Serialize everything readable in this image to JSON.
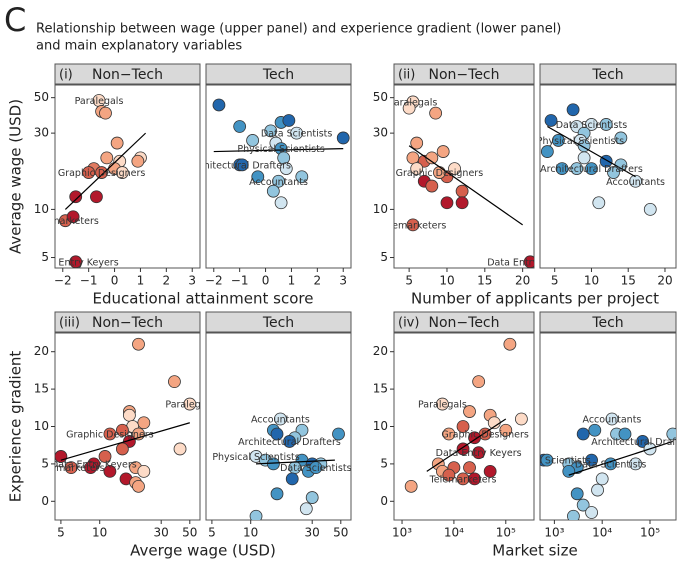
{
  "panel_letter": "C",
  "title": [
    "Relationship between wage (upper panel) and experience gradient (lower panel)",
    "and main explanatory variables"
  ],
  "chart_data": [
    {
      "type": "scatter",
      "panel": "(i)",
      "facet": "Non−Tech",
      "xlabel": "Educational attainment score",
      "ylabel": "Average wage (USD)",
      "log_x": false,
      "log_y": true,
      "xlim": [
        -2.3,
        3.3
      ],
      "ylim": [
        4.3,
        60
      ],
      "xticks": [
        {
          "value": -2,
          "label": "−2"
        },
        {
          "value": -1,
          "label": "−1"
        },
        0,
        1,
        2,
        3
      ],
      "yticks": [
        5,
        10,
        30,
        50
      ],
      "x": [
        -0.6,
        -0.5,
        -0.35,
        0.1,
        -0.3,
        0.2,
        1.0,
        0.9,
        -0.8,
        -0.5,
        0.0,
        0.3,
        -1.0,
        -1.5,
        -0.7,
        -1.9,
        -1.6,
        -1.5
      ],
      "y": [
        48,
        41,
        40,
        26,
        21,
        20,
        21,
        20,
        18,
        17,
        18,
        17,
        17,
        12,
        12,
        8.5,
        9,
        4.7
      ],
      "colors": [
        "#fddbc7",
        "#f4a582",
        "#f4a582",
        "#f4a582",
        "#f4a582",
        "#fddbc7",
        "#fddbc7",
        "#f4a582",
        "#e07b62",
        "#d6604d",
        "#f4a582",
        "#fddbc7",
        "#d6604d",
        "#b2182b",
        "#b2182b",
        "#d6604d",
        "#b2182b",
        "#b2182b"
      ],
      "labels": [
        "Paralegals",
        null,
        null,
        null,
        null,
        null,
        null,
        null,
        null,
        "Graphic Designers",
        null,
        null,
        null,
        null,
        null,
        "Telemarketers",
        null,
        "Data Entry Keyers"
      ],
      "trend": {
        "x": [
          -1.9,
          1.2
        ],
        "y": [
          10,
          30
        ]
      }
    },
    {
      "type": "scatter",
      "facet": "Tech",
      "log_x": false,
      "log_y": true,
      "xlim": [
        -2.3,
        3.3
      ],
      "ylim": [
        4.3,
        60
      ],
      "xticks": [
        {
          "value": -2,
          "label": "−2"
        },
        {
          "value": -1,
          "label": "−1"
        },
        0,
        1,
        2,
        3
      ],
      "x": [
        -1.8,
        -1.0,
        0.6,
        0.9,
        0.2,
        1.2,
        3.0,
        -0.5,
        0.4,
        0.6,
        -1.0,
        -0.9,
        0.7,
        0.8,
        -0.3,
        0.5,
        1.4,
        0.3,
        0.6
      ],
      "y": [
        45,
        33,
        35,
        36,
        31,
        30,
        28,
        27,
        26,
        24,
        19,
        19,
        21,
        18,
        16,
        15,
        16,
        13,
        11
      ],
      "colors": [
        "#2166ac",
        "#4393c3",
        "#4393c3",
        "#2166ac",
        "#92c5de",
        "#d1e5f0",
        "#2166ac",
        "#92c5de",
        "#d1e5f0",
        "#4393c3",
        "#2166ac",
        "#2166ac",
        "#92c5de",
        "#d1e5f0",
        "#4393c3",
        "#92c5de",
        "#92c5de",
        "#92c5de",
        "#d1e5f0"
      ],
      "labels": [
        null,
        null,
        null,
        null,
        null,
        "Data Scientists",
        null,
        null,
        null,
        "Physical Scientists",
        "Architectural Drafters",
        null,
        null,
        null,
        null,
        "Accountants",
        null,
        null,
        null
      ],
      "trend": {
        "x": [
          -2.0,
          3.0
        ],
        "y": [
          23,
          24
        ]
      }
    },
    {
      "type": "scatter",
      "panel": "(ii)",
      "facet": "Non−Tech",
      "xlabel": "Number of applicants per project",
      "log_x": false,
      "log_y": true,
      "xlim": [
        3,
        21.5
      ],
      "ylim": [
        4.3,
        60
      ],
      "xticks": [
        5,
        10,
        15,
        20
      ],
      "yticks": [
        5,
        10,
        30,
        50
      ],
      "x": [
        5.5,
        5.0,
        8.5,
        6.0,
        9.5,
        5.5,
        7.0,
        8.0,
        6.0,
        10.0,
        9.0,
        11.0,
        7.0,
        8.0,
        12.0,
        10.0,
        12.0,
        5.5,
        21.0
      ],
      "y": [
        47,
        43,
        40,
        26,
        23,
        21,
        20,
        21,
        18,
        16,
        17,
        18,
        15,
        14,
        13,
        11,
        11,
        8,
        4.7
      ],
      "colors": [
        "#fddbc7",
        "#fddbc7",
        "#f4a582",
        "#f4a582",
        "#f4a582",
        "#f4a582",
        "#d6604d",
        "#f4a582",
        "#fddbc7",
        "#d6604d",
        "#f4a582",
        "#fddbc7",
        "#b2182b",
        "#d6604d",
        "#d6604d",
        "#b2182b",
        "#b2182b",
        "#d6604d",
        "#b2182b"
      ],
      "labels": [
        "Paralegals",
        null,
        null,
        null,
        null,
        null,
        null,
        null,
        null,
        null,
        "Graphic Designers",
        null,
        null,
        null,
        null,
        null,
        null,
        "Telemarketers",
        "Data Entry Keyers"
      ],
      "trend": {
        "x": [
          5,
          20
        ],
        "y": [
          25,
          8
        ]
      }
    },
    {
      "type": "scatter",
      "facet": "Tech",
      "log_x": false,
      "log_y": true,
      "xlim": [
        3,
        21.5
      ],
      "ylim": [
        4.3,
        60
      ],
      "xticks": [
        5,
        10,
        15,
        20
      ],
      "x": [
        7.5,
        4.5,
        10.0,
        12.0,
        8.0,
        9.0,
        14.0,
        5.5,
        8.5,
        4.0,
        9.0,
        9.0,
        12.0,
        10.0,
        14.0,
        6.0,
        8.0,
        13.0,
        16.0,
        11.0,
        18.0
      ],
      "y": [
        42,
        36,
        34,
        34,
        33,
        30,
        28,
        27,
        27,
        23,
        25,
        21,
        20,
        18,
        19,
        18,
        18,
        17,
        15,
        11,
        10
      ],
      "colors": [
        "#2166ac",
        "#2166ac",
        "#d1e5f0",
        "#92c5de",
        "#d1e5f0",
        "#92c5de",
        "#92c5de",
        "#4393c3",
        "#d1e5f0",
        "#4393c3",
        "#92c5de",
        "#d1e5f0",
        "#2166ac",
        "#4393c3",
        "#92c5de",
        "#4393c3",
        "#92c5de",
        "#92c5de",
        "#d1e5f0",
        "#d1e5f0",
        "#d1e5f0"
      ],
      "labels": [
        null,
        null,
        "Data Scientists",
        null,
        null,
        null,
        null,
        null,
        "Physical Scientists",
        null,
        null,
        null,
        null,
        "Architectural Drafters",
        null,
        null,
        null,
        null,
        "Accountants",
        null,
        null
      ],
      "trend": {
        "x": [
          4,
          16
        ],
        "y": [
          33,
          16
        ]
      }
    },
    {
      "type": "scatter",
      "panel": "(iii)",
      "facet": "Non−Tech",
      "xlabel": "Averge wage (USD)",
      "ylabel": "Experience gradient",
      "log_x": true,
      "log_y": false,
      "xlim": [
        4.5,
        60
      ],
      "ylim": [
        -2.5,
        22.5
      ],
      "xticks": [
        5,
        10,
        30,
        50
      ],
      "yticks": [
        0,
        5,
        10,
        15,
        20
      ],
      "x": [
        20,
        38,
        50,
        17,
        17,
        22,
        18,
        15,
        20,
        12,
        17,
        5,
        11,
        15,
        9,
        6,
        8.5,
        12,
        19,
        22,
        16,
        19,
        20,
        42
      ],
      "y": [
        21,
        16,
        13,
        12,
        11.5,
        10.5,
        10,
        9.5,
        9,
        9,
        8,
        6,
        6,
        7,
        5,
        4.5,
        4.5,
        4,
        4.5,
        4,
        3,
        2.5,
        2,
        7
      ],
      "colors": [
        "#f4a582",
        "#f4a582",
        "#fddbc7",
        "#f4a582",
        "#fddbc7",
        "#f4a582",
        "#fddbc7",
        "#d6604d",
        "#f4a582",
        "#d6604d",
        "#b2182b",
        "#b2182b",
        "#d6604d",
        "#d6604d",
        "#b2182b",
        "#d6604d",
        "#b2182b",
        "#b2182b",
        "#f4a582",
        "#fddbc7",
        "#b2182b",
        "#f4a582",
        "#f4a582",
        "#fddbc7"
      ],
      "labels": [
        null,
        null,
        "Paralegals",
        null,
        null,
        null,
        null,
        null,
        null,
        "Graphic Designers",
        null,
        null,
        null,
        null,
        "Data Entry Keyers",
        "Telemarketers",
        null,
        null,
        null,
        null,
        null,
        null,
        null,
        null
      ],
      "trend": {
        "x": [
          5,
          50
        ],
        "y": [
          5.5,
          10.5
        ]
      }
    },
    {
      "type": "scatter",
      "facet": "Tech",
      "log_x": true,
      "log_y": false,
      "xlim": [
        4.5,
        60
      ],
      "ylim": [
        -2.5,
        22.5
      ],
      "xticks": [
        5,
        10,
        30,
        50
      ],
      "x": [
        17,
        15,
        25,
        16,
        22,
        48,
        20,
        11,
        13,
        15,
        25,
        30,
        35,
        22,
        28,
        32,
        21,
        16,
        30,
        27,
        11
      ],
      "y": [
        11,
        9.5,
        9.5,
        9,
        8.5,
        9,
        8,
        6,
        5.5,
        5,
        5.5,
        5,
        5,
        4.5,
        4,
        4.5,
        3,
        1,
        0.5,
        -1,
        -2
      ],
      "colors": [
        "#d1e5f0",
        "#4393c3",
        "#92c5de",
        "#2166ac",
        "#92c5de",
        "#4393c3",
        "#2166ac",
        "#d1e5f0",
        "#92c5de",
        "#4393c3",
        "#4393c3",
        "#2166ac",
        "#92c5de",
        "#92c5de",
        "#4393c3",
        "#4393c3",
        "#2166ac",
        "#4393c3",
        "#92c5de",
        "#d1e5f0",
        "#92c5de"
      ],
      "labels": [
        "Accountants",
        null,
        null,
        null,
        null,
        null,
        "Architectural Drafters",
        "Physical Scientists",
        null,
        null,
        null,
        null,
        null,
        null,
        null,
        "Data Scientists",
        null,
        null,
        null,
        null,
        null
      ],
      "trend": {
        "x": [
          11,
          45
        ],
        "y": [
          5,
          5.5
        ]
      }
    },
    {
      "type": "scatter",
      "panel": "(iv)",
      "facet": "Non−Tech",
      "xlabel": "Market size",
      "log_x": true,
      "log_y": false,
      "xlim": [
        700,
        350000
      ],
      "ylim": [
        -2.5,
        22.5
      ],
      "xticks": [
        {
          "value": 1000,
          "label": "10³"
        },
        {
          "value": 10000,
          "label": "10⁴"
        },
        {
          "value": 100000,
          "label": "10⁵"
        }
      ],
      "yticks": [
        0,
        5,
        10,
        15,
        20
      ],
      "x": [
        120000,
        30000,
        6000,
        20000,
        50000,
        200000,
        60000,
        15000,
        100000,
        40000,
        8000,
        25000,
        15000,
        30000,
        5000,
        10000,
        6000,
        20000,
        50000,
        15000,
        25000,
        1500,
        8000
      ],
      "y": [
        21,
        16,
        13,
        12,
        11.5,
        11,
        10.5,
        10,
        9.5,
        9,
        9,
        8.5,
        7,
        6.5,
        5,
        4.5,
        4,
        4.5,
        4,
        3,
        3,
        2,
        3.5
      ],
      "colors": [
        "#f4a582",
        "#f4a582",
        "#fddbc7",
        "#f4a582",
        "#f4a582",
        "#fddbc7",
        "#fddbc7",
        "#d6604d",
        "#f4a582",
        "#d6604d",
        "#f4a582",
        "#b2182b",
        "#b2182b",
        "#b2182b",
        "#f4a582",
        "#d6604d",
        "#f4a582",
        "#d6604d",
        "#b2182b",
        "#d6604d",
        "#b2182b",
        "#f4a582",
        "#d6604d"
      ],
      "labels": [
        null,
        null,
        "Paralegals",
        null,
        null,
        null,
        null,
        null,
        null,
        "Graphic Designers",
        null,
        null,
        null,
        "Data Entry Keyers",
        null,
        null,
        null,
        null,
        null,
        "Telemarketers",
        null,
        null,
        null
      ],
      "trend": {
        "x": [
          3000,
          100000
        ],
        "y": [
          4,
          11
        ]
      }
    },
    {
      "type": "scatter",
      "facet": "Tech",
      "log_x": true,
      "log_y": false,
      "xlim": [
        500,
        350000
      ],
      "ylim": [
        -2.5,
        22.5
      ],
      "xticks": [
        {
          "value": 1000,
          "label": "10³"
        },
        {
          "value": 10000,
          "label": "10⁴"
        },
        {
          "value": 100000,
          "label": "10⁵"
        }
      ],
      "x": [
        16000,
        4000,
        7000,
        20000,
        30000,
        300000,
        70000,
        600,
        700,
        2000,
        6000,
        15000,
        3000,
        50000,
        100000,
        2000,
        3000,
        8000,
        10000,
        4000,
        2500,
        6000
      ],
      "y": [
        11,
        9,
        9.5,
        9,
        9,
        9,
        8,
        5.5,
        5.5,
        5,
        5.5,
        5,
        4.5,
        5,
        7,
        4,
        1,
        1.5,
        3,
        -0.5,
        -2,
        -1.5
      ],
      "colors": [
        "#d1e5f0",
        "#2166ac",
        "#4393c3",
        "#92c5de",
        "#4393c3",
        "#92c5de",
        "#2166ac",
        "#2166ac",
        "#4393c3",
        "#92c5de",
        "#2166ac",
        "#4393c3",
        "#4393c3",
        "#d1e5f0",
        "#d1e5f0",
        "#4393c3",
        "#4393c3",
        "#d1e5f0",
        "#d1e5f0",
        "#92c5de",
        "#92c5de",
        "#d1e5f0"
      ],
      "labels": [
        "Accountants",
        null,
        null,
        null,
        null,
        null,
        "Architectural Drafters",
        null,
        "Physical Scientists",
        null,
        null,
        "Data Scientists",
        null,
        null,
        null,
        null,
        null,
        null,
        null,
        null,
        null,
        null
      ],
      "trend": {
        "x": [
          2000,
          300000
        ],
        "y": [
          3.5,
          8
        ]
      }
    }
  ]
}
